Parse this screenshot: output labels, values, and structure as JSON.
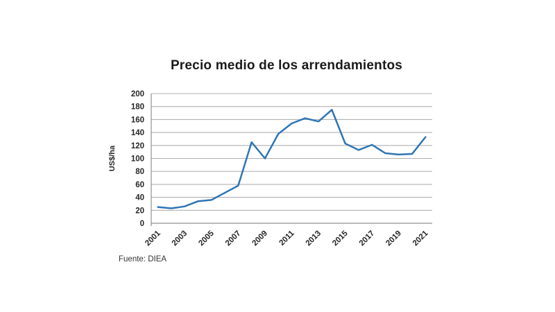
{
  "chart": {
    "title": "Precio medio de los arrendamientos",
    "source_note": "Fuente: DIEA"
  },
  "chart_data": {
    "type": "line",
    "title": "Precio medio de los arrendamientos",
    "xlabel": "",
    "ylabel": "US$/ha",
    "x": [
      2001,
      2002,
      2003,
      2004,
      2005,
      2006,
      2007,
      2008,
      2009,
      2010,
      2011,
      2012,
      2013,
      2014,
      2015,
      2016,
      2017,
      2018,
      2019,
      2020,
      2021
    ],
    "series": [
      {
        "name": "Precio medio de los arrendamientos (US$/ha)",
        "values": [
          25,
          23,
          26,
          34,
          36,
          47,
          58,
          125,
          100,
          138,
          154,
          162,
          157,
          175,
          123,
          113,
          121,
          108,
          106,
          107,
          133
        ]
      }
    ],
    "ylim": [
      0,
      200
    ],
    "ytick_step": 20,
    "xtick_interval": 2,
    "xtick_labels": [
      "2001",
      "2003",
      "2005",
      "2007",
      "2009",
      "2011",
      "2013",
      "2015",
      "2017",
      "2019",
      "2021"
    ],
    "grid": true,
    "legend_position": "none",
    "colors": {
      "line": "#2E75B6",
      "grid": "#B0B0B0",
      "axis": "#8F8F8F",
      "text": "#262626",
      "title_text": "#1A1A1A"
    }
  }
}
